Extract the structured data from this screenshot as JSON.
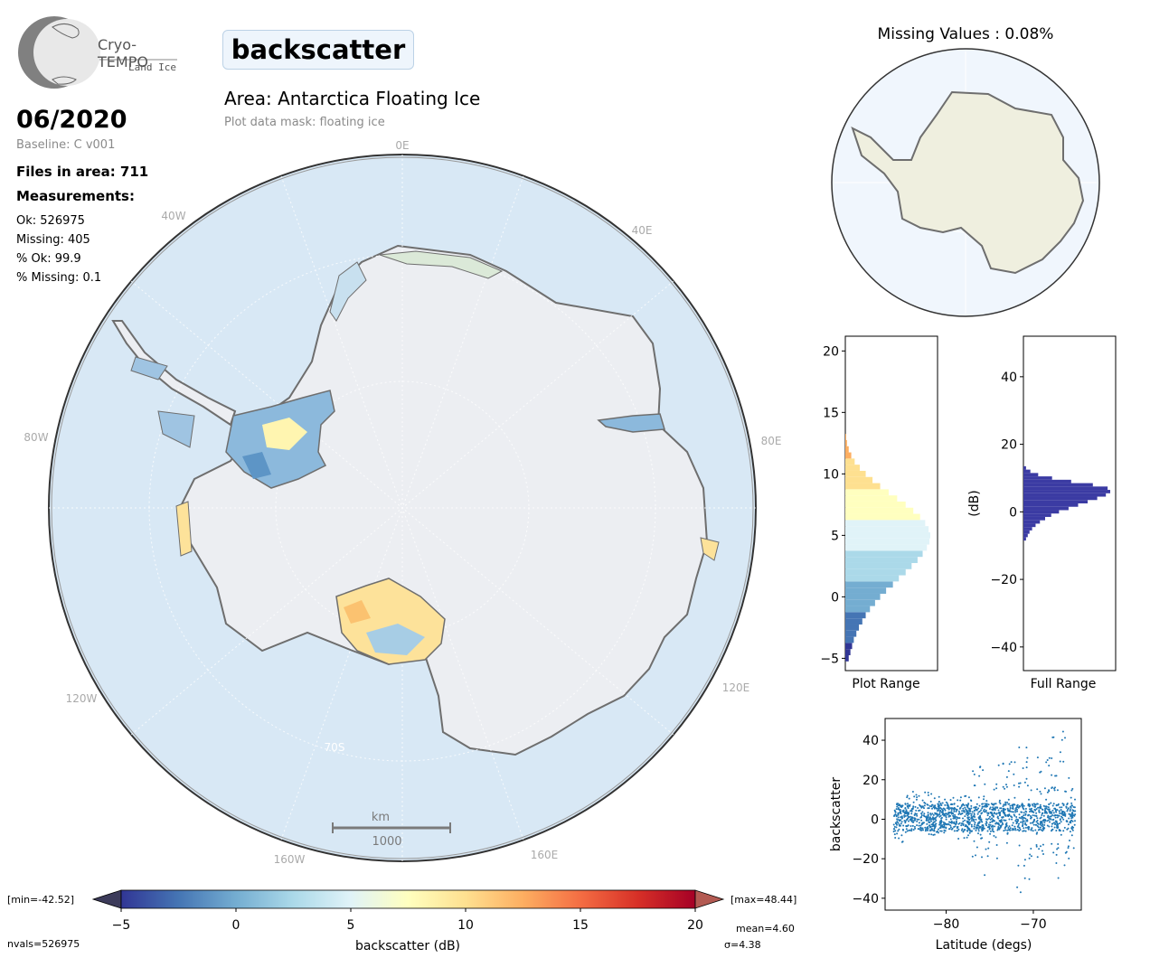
{
  "logo": {
    "name": "Cryo-TEMPO",
    "subtitle": "Land Ice"
  },
  "parameter_title": "backscatter",
  "date": "06/2020",
  "baseline": "Baseline: C v001",
  "files": "Files in area: 711",
  "measurements": {
    "heading": "Measurements:",
    "ok": "Ok: 526975",
    "missing": "Missing: 405",
    "pct_ok": "% Ok: 99.9",
    "pct_missing": "% Missing: 0.1"
  },
  "area_title": "Area: Antarctica Floating Ice",
  "mask_label": "Plot data mask: floating ice",
  "map": {
    "meridian_labels": [
      "0E",
      "40E",
      "80E",
      "120E",
      "160E",
      "160W",
      "120W",
      "80W",
      "40W"
    ],
    "lat_label": "70S",
    "scale_unit": "km",
    "scale_value": "1000"
  },
  "colorbar": {
    "min_label": "[min=-42.52]",
    "max_label": "[max=48.44]",
    "ticks": [
      "−5",
      "0",
      "5",
      "10",
      "15",
      "20"
    ],
    "label": "backscatter (dB)",
    "nvals": "nvals=526975",
    "mean": "mean=4.60",
    "sigma": "σ=4.38",
    "colors": [
      "#313695",
      "#4575b4",
      "#74add1",
      "#abd9e9",
      "#e0f3f8",
      "#ffffbf",
      "#fee090",
      "#fdae61",
      "#f46d43",
      "#d73027",
      "#a50026"
    ]
  },
  "missing_title": "Missing Values : 0.08%",
  "chart_data": [
    {
      "type": "bar",
      "orientation": "horizontal",
      "title": "Plot Range",
      "xlabel": "Plot Range",
      "ylim": [
        -6,
        21.2
      ],
      "yticks": [
        "−5",
        "0",
        "5",
        "10",
        "15",
        "20"
      ],
      "ytick_values": [
        -5,
        0,
        5,
        10,
        15,
        20
      ],
      "bins_center": [
        -5.0,
        -4.5,
        -4.0,
        -3.5,
        -3.0,
        -2.5,
        -2.0,
        -1.5,
        -1.0,
        -0.5,
        0.0,
        0.5,
        1.0,
        1.5,
        2.0,
        2.5,
        3.0,
        3.5,
        4.0,
        4.5,
        5.0,
        5.5,
        6.0,
        6.5,
        7.0,
        7.5,
        8.0,
        8.5,
        9.0,
        9.5,
        10.0,
        10.5,
        11.0,
        11.5,
        12.0,
        12.5,
        13.0
      ],
      "values": [
        0.04,
        0.06,
        0.08,
        0.1,
        0.13,
        0.16,
        0.2,
        0.24,
        0.29,
        0.35,
        0.41,
        0.48,
        0.56,
        0.63,
        0.71,
        0.78,
        0.85,
        0.91,
        0.96,
        0.99,
        1.0,
        0.98,
        0.94,
        0.88,
        0.8,
        0.71,
        0.61,
        0.51,
        0.41,
        0.32,
        0.24,
        0.17,
        0.11,
        0.07,
        0.04,
        0.02,
        0.01
      ]
    },
    {
      "type": "bar",
      "orientation": "horizontal",
      "title": "Full Range",
      "xlabel": "Full Range",
      "ylabel": "(dB)",
      "ylim": [
        -47,
        52
      ],
      "yticks": [
        "−40",
        "−20",
        "0",
        "20",
        "40"
      ],
      "ytick_values": [
        -40,
        -20,
        0,
        20,
        40
      ],
      "bins_center": [
        -8,
        -7,
        -6,
        -5,
        -4,
        -3,
        -2,
        -1,
        0,
        1,
        2,
        3,
        4,
        5,
        6,
        7,
        8,
        9,
        10,
        11,
        12,
        13
      ],
      "values": [
        0.03,
        0.05,
        0.07,
        0.1,
        0.14,
        0.19,
        0.25,
        0.32,
        0.41,
        0.52,
        0.63,
        0.74,
        0.85,
        0.95,
        1.0,
        0.97,
        0.8,
        0.55,
        0.33,
        0.17,
        0.08,
        0.03
      ],
      "color": "#3b3ba3"
    },
    {
      "type": "scatter",
      "xlabel": "Latitude (degs)",
      "ylabel": "backscatter",
      "xlim": [
        -87,
        -64.5
      ],
      "ylim": [
        -46,
        51
      ],
      "xticks": [
        "−80",
        "−70"
      ],
      "xtick_values": [
        -80,
        -70
      ],
      "yticks": [
        "−40",
        "−20",
        "0",
        "20",
        "40"
      ],
      "ytick_values": [
        -40,
        -20,
        0,
        20,
        40
      ],
      "color": "#1f77b4",
      "bands": [
        {
          "x": [
            -86.0,
            -84.5
          ],
          "y": [
            -12,
            8
          ]
        },
        {
          "x": [
            -84.5,
            -80.0
          ],
          "y": [
            -8,
            14
          ]
        },
        {
          "x": [
            -80.0,
            -77.0
          ],
          "y": [
            -10,
            12
          ]
        },
        {
          "x": [
            -77.0,
            -75.5
          ],
          "y": [
            -30,
            28
          ]
        },
        {
          "x": [
            -75.5,
            -74.0
          ],
          "y": [
            -20,
            18
          ]
        },
        {
          "x": [
            -74.0,
            -72.0
          ],
          "y": [
            -12,
            30
          ]
        },
        {
          "x": [
            -72.0,
            -70.0
          ],
          "y": [
            -38,
            38
          ]
        },
        {
          "x": [
            -70.0,
            -68.0
          ],
          "y": [
            -20,
            32
          ]
        },
        {
          "x": [
            -68.0,
            -66.0
          ],
          "y": [
            -30,
            46
          ]
        },
        {
          "x": [
            -66.0,
            -65.2
          ],
          "y": [
            -22,
            22
          ]
        }
      ]
    }
  ]
}
